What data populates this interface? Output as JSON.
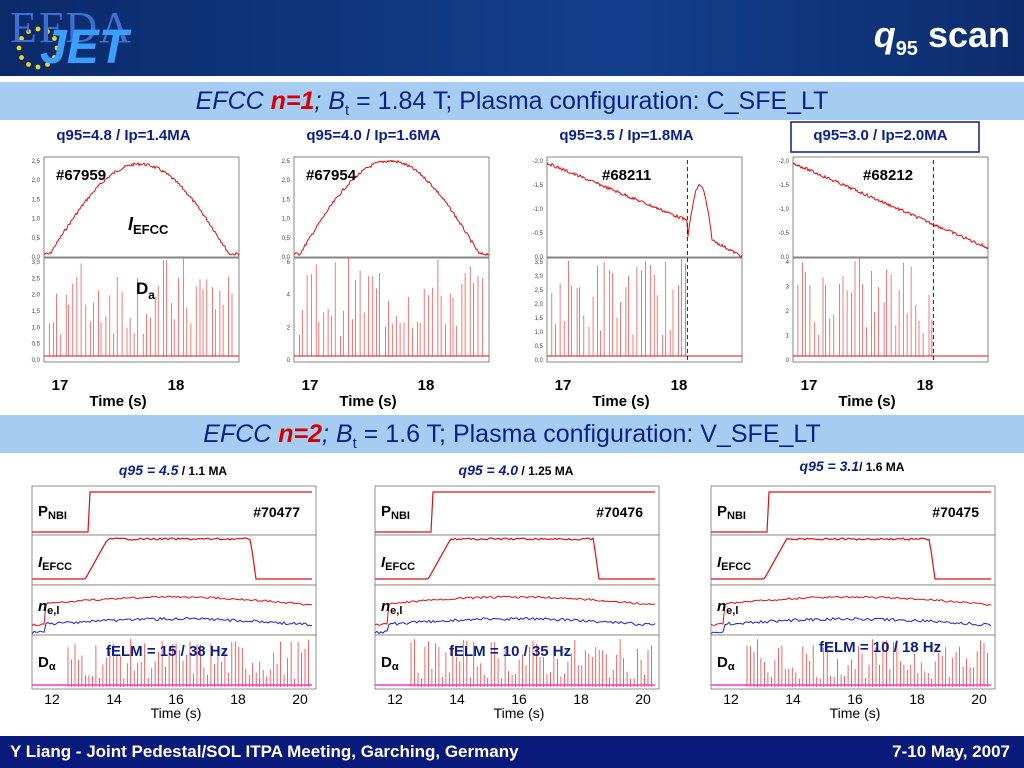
{
  "header": {
    "logo_top": "EFDA",
    "logo_main": "JET",
    "title_q": "q",
    "title_sub": "95",
    "title_rest": " scan"
  },
  "band1": {
    "efcc": "EFCC ",
    "n": "n=1",
    "semi": "; ",
    "b": "B",
    "bsub": "t",
    "rest": " = 1.84 T; Plasma configuration: C_SFE_LT"
  },
  "band2": {
    "efcc": "EFCC ",
    "n": "n=2",
    "semi": "; ",
    "b": "B",
    "bsub": "t",
    "rest": " = 1.6 T; Plasma configuration: V_SFE_LT"
  },
  "footer": {
    "left": "Y Liang - Joint Pedestal/SOL ITPA Meeting, Garching, Germany",
    "right": "7-10 May, 2007"
  },
  "colors": {
    "trace_red": "#e01010",
    "trace_blue": "#2020d0",
    "text_blue": "#0a1f8a",
    "magenta": "#ff33cc"
  },
  "chart_data": [
    {
      "type": "line",
      "panel": "top-1",
      "q_label": "q95=4.8 / Ip=1.4MA",
      "shot": "#67959",
      "signal_top": "I",
      "signal_top_sub": "EFCC",
      "signal_bot": "D",
      "signal_bot_sub": "a",
      "x_ticks": [
        "17",
        "18"
      ],
      "xlabel": "Time (s)",
      "ylim_top": [
        0,
        2.6
      ],
      "ylim_bot": [
        0,
        3.0
      ],
      "yticks_top": [
        "0,0",
        "0,5",
        "1,0",
        "1,5",
        "2,0",
        "2,5"
      ],
      "yticks_bot": [
        "0,0",
        "0,5",
        "1,0",
        "1,5",
        "2,0",
        "2,5",
        "3,0"
      ]
    },
    {
      "type": "line",
      "panel": "top-2",
      "q_label": "q95=4.0 / Ip=1.6MA",
      "shot": "#67954",
      "x_ticks": [
        "17",
        "18"
      ],
      "xlabel": "Time (s)",
      "yticks_top": [
        "0,0",
        "0,5",
        "1,0",
        "1,5",
        "2,0",
        "2,5"
      ],
      "yticks_bot": [
        "0",
        "2",
        "4",
        "6"
      ]
    },
    {
      "type": "line",
      "panel": "top-3",
      "q_label": "q95=3.5 / Ip=1.8MA",
      "shot": "#68211",
      "x_ticks": [
        "17",
        "18"
      ],
      "xlabel": "Time (s)",
      "yticks_top": [
        "0,0",
        "-0,5",
        "-1,0",
        "-1,5",
        "-2,0"
      ],
      "yticks_bot": [
        "0,0",
        "0,5",
        "1,0",
        "1,5",
        "2,0",
        "2,5",
        "3,0",
        "3,5"
      ]
    },
    {
      "type": "line",
      "panel": "top-4",
      "q_label": "q95=3.0 / Ip=2.0MA",
      "shot": "#68212",
      "x_ticks": [
        "17",
        "18"
      ],
      "xlabel": "Time (s)",
      "yticks_top": [
        "0,0",
        "-0,5",
        "-1,0",
        "-1,5",
        "-2,0"
      ],
      "yticks_bot": [
        "0",
        "1",
        "2",
        "3",
        "4"
      ]
    },
    {
      "type": "line",
      "panel": "bottom-1",
      "q_label_q": "q95 = 4.5",
      "q_label_rest": " / 1.1 MA",
      "shot": "#70477",
      "fELM": "fELM = 15 / 38 Hz",
      "x_ticks": [
        "12",
        "14",
        "16",
        "18",
        "20"
      ],
      "xlabel": "Time (s)",
      "rows": [
        "PNBI",
        "IEFCC",
        "ne,l",
        "Dα"
      ]
    },
    {
      "type": "line",
      "panel": "bottom-2",
      "q_label_q": "q95 = 4.0",
      "q_label_rest": " / 1.25 MA",
      "shot": "#70476",
      "fELM": "fELM = 10 / 35 Hz",
      "x_ticks": [
        "12",
        "14",
        "16",
        "18",
        "20"
      ],
      "xlabel": "Time (s)",
      "rows": [
        "PNBI",
        "IEFCC",
        "ne,l",
        "Dα"
      ]
    },
    {
      "type": "line",
      "panel": "bottom-3",
      "q_label_q": "q95 = 3.1",
      "q_label_rest": "/ 1.6 MA",
      "shot": "#70475",
      "fELM": "fELM = 10 / 18 Hz",
      "x_ticks": [
        "12",
        "14",
        "16",
        "18",
        "20"
      ],
      "xlabel": "Time (s)",
      "rows": [
        "PNBI",
        "IEFCC",
        "ne,l",
        "Dα"
      ]
    }
  ]
}
